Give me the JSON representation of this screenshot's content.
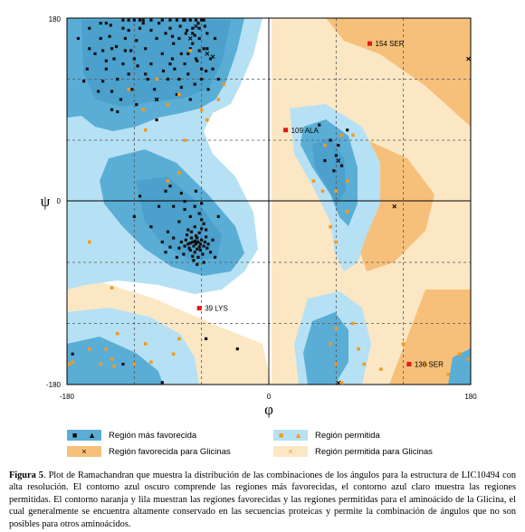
{
  "chart_data": {
    "type": "scatter",
    "xlim": [
      -180,
      180
    ],
    "ylim": [
      -180,
      180
    ],
    "x_ticks": [
      "-180",
      "0",
      "180"
    ],
    "y_ticks": [
      "180",
      "0",
      "-180"
    ],
    "xlabel": "φ",
    "ylabel": "ψ",
    "grid": "dashed at ±60, ±120",
    "colors": {
      "most_favoured": "#5aaed6",
      "allowed": "#b6e1f4",
      "glycine_favoured": "#f6c07a",
      "glycine_allowed": "#fbe7c4",
      "outlier": "#e01a1a",
      "point": "#111111",
      "glycine_point": "#f39a1e"
    },
    "general_points": [
      [
        -65,
        -42
      ],
      [
        -62,
        -45
      ],
      [
        -68,
        -40
      ],
      [
        -60,
        -38
      ],
      [
        -70,
        -48
      ],
      [
        -58,
        -44
      ],
      [
        -64,
        -36
      ],
      [
        -66,
        -50
      ],
      [
        -72,
        -42
      ],
      [
        -63,
        -40
      ],
      [
        -67,
        -44
      ],
      [
        -61,
        -48
      ],
      [
        -69,
        -36
      ],
      [
        -57,
        -40
      ],
      [
        -74,
        -38
      ],
      [
        -65,
        -34
      ],
      [
        -59,
        -52
      ],
      [
        -71,
        -46
      ],
      [
        -62,
        -31
      ],
      [
        -68,
        -54
      ],
      [
        -75,
        -44
      ],
      [
        -55,
        -46
      ],
      [
        -60,
        -27
      ],
      [
        -66,
        -39
      ],
      [
        -70,
        -41
      ],
      [
        -64,
        -47
      ],
      [
        -78,
        -40
      ],
      [
        -56,
        -35
      ],
      [
        -63,
        -55
      ],
      [
        -73,
        -33
      ],
      [
        -58,
        -22
      ],
      [
        -66,
        -25
      ],
      [
        -72,
        -28
      ],
      [
        -60,
        -18
      ],
      [
        -80,
        -46
      ],
      [
        -67,
        -58
      ],
      [
        -54,
        -42
      ],
      [
        -61,
        -42
      ],
      [
        -69,
        -30
      ],
      [
        -76,
        -52
      ],
      [
        -85,
        -36
      ],
      [
        -52,
        -50
      ],
      [
        -64,
        -62
      ],
      [
        -88,
        -45
      ],
      [
        -90,
        -30
      ],
      [
        -50,
        -38
      ],
      [
        -62,
        -12
      ],
      [
        -70,
        -15
      ],
      [
        -58,
        -60
      ],
      [
        -80,
        -20
      ],
      [
        -48,
        -55
      ],
      [
        -95,
        -40
      ],
      [
        -66,
        -5
      ],
      [
        -75,
        -8
      ],
      [
        -60,
        -2
      ],
      [
        -82,
        -55
      ],
      [
        -92,
        -50
      ],
      [
        -56,
        -28
      ],
      [
        -150,
        160
      ],
      [
        -140,
        150
      ],
      [
        -120,
        140
      ],
      [
        -130,
        170
      ],
      [
        -110,
        150
      ],
      [
        -145,
        130
      ],
      [
        -125,
        125
      ],
      [
        -100,
        160
      ],
      [
        -155,
        145
      ],
      [
        -135,
        120
      ],
      [
        -115,
        170
      ],
      [
        -105,
        135
      ],
      [
        -160,
        170
      ],
      [
        -142,
        162
      ],
      [
        -118,
        158
      ],
      [
        -128,
        148
      ],
      [
        -138,
        140
      ],
      [
        -95,
        145
      ],
      [
        -148,
        118
      ],
      [
        -122,
        110
      ],
      [
        -108,
        120
      ],
      [
        -132,
        100
      ],
      [
        -162,
        130
      ],
      [
        -112,
        175
      ],
      [
        -125,
        178
      ],
      [
        -98,
        175
      ],
      [
        -145,
        175
      ],
      [
        -170,
        160
      ],
      [
        -152,
        108
      ],
      [
        -135,
        88
      ],
      [
        -88,
        135
      ],
      [
        -118,
        95
      ],
      [
        -70,
        150
      ],
      [
        -65,
        140
      ],
      [
        -75,
        135
      ],
      [
        -62,
        160
      ],
      [
        -80,
        160
      ],
      [
        -68,
        170
      ],
      [
        -72,
        125
      ],
      [
        -60,
        130
      ],
      [
        -78,
        145
      ],
      [
        -85,
        155
      ],
      [
        -66,
        115
      ],
      [
        -58,
        150
      ],
      [
        -90,
        120
      ],
      [
        -55,
        165
      ],
      [
        -63,
        175
      ],
      [
        -82,
        105
      ],
      [
        -70,
        100
      ],
      [
        -76,
        178
      ],
      [
        -52,
        140
      ],
      [
        -88,
        170
      ],
      [
        -60,
        120
      ],
      [
        -74,
        165
      ],
      [
        -56,
        128
      ],
      [
        -68,
        155
      ],
      [
        -64,
        138
      ],
      [
        -48,
        160
      ],
      [
        -84,
        130
      ],
      [
        -62,
        148
      ],
      [
        -100,
        100
      ],
      [
        -140,
        108
      ],
      [
        -110,
        125
      ],
      [
        -130,
        135
      ],
      [
        -150,
        175
      ],
      [
        -105,
        168
      ],
      [
        -128,
        160
      ],
      [
        -165,
        118
      ],
      [
        -94,
        128
      ],
      [
        -54,
        110
      ],
      [
        -86,
        140
      ],
      [
        -78,
        112
      ],
      [
        -72,
        145
      ],
      [
        -66,
        163
      ],
      [
        -58,
        178
      ],
      [
        -80,
        120
      ],
      [
        -92,
        165
      ],
      [
        -123,
        148
      ],
      [
        -141,
        173
      ],
      [
        -117,
        133
      ],
      [
        -136,
        152
      ],
      [
        -102,
        110
      ],
      [
        -148,
        148
      ],
      [
        -112,
        178
      ],
      [
        -125,
        168
      ],
      [
        -70,
        178
      ],
      [
        -65,
        178
      ],
      [
        -60,
        178
      ],
      [
        -75,
        178
      ],
      [
        -82,
        178
      ],
      [
        -88,
        178
      ],
      [
        -95,
        178
      ],
      [
        -120,
        178
      ],
      [
        -62,
        170
      ],
      [
        -68,
        165
      ],
      [
        -57,
        172
      ],
      [
        -145,
        138
      ],
      [
        -73,
        168
      ],
      [
        -79,
        172
      ],
      [
        -86,
        162
      ],
      [
        -105,
        178
      ],
      [
        -115,
        178
      ],
      [
        -130,
        178
      ],
      [
        -55,
        150
      ],
      [
        -50,
        130
      ],
      [
        -45,
        120
      ],
      [
        -140,
        90
      ],
      [
        -100,
        80
      ],
      [
        -160,
        150
      ],
      [
        55,
        60
      ],
      [
        60,
        45
      ],
      [
        65,
        35
      ],
      [
        50,
        40
      ],
      [
        58,
        30
      ],
      [
        62,
        55
      ],
      [
        70,
        70
      ],
      [
        45,
        75
      ],
      [
        -56,
        -135
      ],
      [
        -28,
        -145
      ],
      [
        -175,
        -150
      ],
      [
        -130,
        -160
      ],
      [
        -95,
        -178
      ],
      [
        -45,
        -15
      ],
      [
        -115,
        5
      ],
      [
        -92,
        10
      ],
      [
        -85,
        -5
      ],
      [
        -75,
        0
      ],
      [
        -105,
        -25
      ],
      [
        -120,
        -15
      ],
      [
        -88,
        15
      ],
      [
        -78,
        8
      ],
      [
        -98,
        -5
      ],
      [
        -65,
        10
      ]
    ],
    "glycine_points": [
      [
        -80,
        105
      ],
      [
        -90,
        95
      ],
      [
        -60,
        90
      ],
      [
        -75,
        60
      ],
      [
        -45,
        100
      ],
      [
        -55,
        80
      ],
      [
        -110,
        70
      ],
      [
        -112,
        90
      ],
      [
        -100,
        120
      ],
      [
        -40,
        115
      ],
      [
        -80,
        28
      ],
      [
        -160,
        -40
      ],
      [
        -140,
        -85
      ],
      [
        -135,
        -130
      ],
      [
        -140,
        -155
      ],
      [
        -150,
        -160
      ],
      [
        -110,
        -140
      ],
      [
        -85,
        -150
      ],
      [
        -105,
        -158
      ],
      [
        -80,
        -135
      ],
      [
        -160,
        -145
      ],
      [
        -145,
        -145
      ],
      [
        -178,
        -160
      ],
      [
        -175,
        -158
      ],
      [
        -120,
        -160
      ],
      [
        -138,
        -162
      ],
      [
        -90,
        20
      ],
      [
        -125,
        110
      ],
      [
        -70,
        148
      ],
      [
        50,
        55
      ],
      [
        65,
        65
      ],
      [
        60,
        10
      ],
      [
        40,
        20
      ],
      [
        48,
        10
      ],
      [
        70,
        20
      ],
      [
        75,
        65
      ],
      [
        55,
        -25
      ],
      [
        60,
        -40
      ],
      [
        70,
        -10
      ],
      [
        75,
        -120
      ],
      [
        60,
        -125
      ],
      [
        55,
        -140
      ],
      [
        60,
        -160
      ],
      [
        80,
        -145
      ],
      [
        85,
        -160
      ],
      [
        100,
        -165
      ],
      [
        120,
        -140
      ],
      [
        140,
        -160
      ],
      [
        160,
        -170
      ],
      [
        178,
        -155
      ],
      [
        170,
        -150
      ],
      [
        65,
        -185
      ]
    ],
    "glycine_cross_points": [
      [
        -55,
        145
      ],
      [
        -70,
        160
      ],
      [
        -65,
        172
      ],
      [
        -50,
        142
      ],
      [
        -100,
        100
      ],
      [
        -65,
        -40
      ],
      [
        178,
        140
      ],
      [
        112,
        -5
      ],
      [
        62,
        40
      ],
      [
        62,
        -182
      ]
    ],
    "outliers": [
      {
        "label": "154 SER",
        "x": 90,
        "y": 155
      },
      {
        "label": "109 ALA",
        "x": 15,
        "y": 70
      },
      {
        "label": "39 LYS",
        "x": -62,
        "y": -105
      },
      {
        "label": "136 SER",
        "x": 125,
        "y": -160
      }
    ],
    "legend": [
      {
        "label": "Región más favorecida",
        "swatch": "most_favoured",
        "markers": [
          "■",
          "▲"
        ]
      },
      {
        "label": "Región permitida",
        "swatch": "allowed",
        "markers": [
          "■",
          "▲"
        ]
      },
      {
        "label": "Región favorecida para Glicinas",
        "swatch": "glycine_favoured",
        "markers": [
          "×"
        ]
      },
      {
        "label": "Región permitida para Glicinas",
        "swatch": "glycine_allowed",
        "markers": [
          "×"
        ]
      }
    ]
  },
  "caption": {
    "label": "Figura 5",
    "text": ". Plot de Ramachandran que muestra la distribución de las combinaciones de los ángulos para la estructura de LIC10494 con alta resolución. El contorno azul oscuro comprende las regiones más favorecidas, el contorno azul claro muestra las regiones permitidas. El contorno naranja y lila muestran las regiones favorecidas y las regiones permitidas para el aminoácido de la Glicina, el cual generalmente se encuentra altamente conservado en las secuencias proteicas y permite la combinación de ángulos que no son posibles para otros aminoácidos."
  }
}
